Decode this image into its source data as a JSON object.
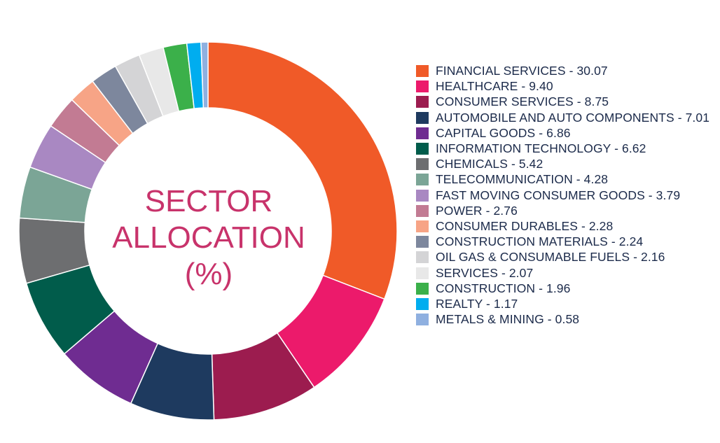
{
  "chart_data": {
    "type": "pie",
    "title_lines": [
      "SECTOR",
      "ALLOCATION",
      "(%)"
    ],
    "legend_placement": "right",
    "slices": [
      {
        "label": "FINANCIAL SERVICES - 30.07",
        "value": 30.07,
        "color": "#f05a28"
      },
      {
        "label": "HEALTHCARE - 9.40",
        "value": 9.4,
        "color": "#ec1a6b"
      },
      {
        "label": "CONSUMER SERVICES - 8.75",
        "value": 8.75,
        "color": "#9c1c4f"
      },
      {
        "label": "AUTOMOBILE AND AUTO COMPONENTS - 7.01",
        "value": 7.01,
        "color": "#1e3a5f"
      },
      {
        "label": "CAPITAL GOODS - 6.86",
        "value": 6.86,
        "color": "#6f2c91"
      },
      {
        "label": "INFORMATION TECHNOLOGY - 6.62",
        "value": 6.62,
        "color": "#015c4b"
      },
      {
        "label": "CHEMICALS - 5.42",
        "value": 5.42,
        "color": "#6d6e70"
      },
      {
        "label": "TELECOMMUNICATION - 4.28",
        "value": 4.28,
        "color": "#7ba596"
      },
      {
        "label": "FAST MOVING CONSUMER GOODS - 3.79",
        "value": 3.79,
        "color": "#a988c2"
      },
      {
        "label": "POWER - 2.76",
        "value": 2.76,
        "color": "#c27b93"
      },
      {
        "label": "CONSUMER DURABLES - 2.28",
        "value": 2.28,
        "color": "#f7a486"
      },
      {
        "label": "CONSTRUCTION MATERIALS - 2.24",
        "value": 2.24,
        "color": "#7d879d"
      },
      {
        "label": "OIL GAS & CONSUMABLE FUELS - 2.16",
        "value": 2.16,
        "color": "#d4d4d6"
      },
      {
        "label": "SERVICES - 2.07",
        "value": 2.07,
        "color": "#e8e8e8"
      },
      {
        "label": "CONSTRUCTION - 1.96",
        "value": 1.96,
        "color": "#3bb04a"
      },
      {
        "label": "REALTY - 1.17",
        "value": 1.17,
        "color": "#00adef"
      },
      {
        "label": "METALS & MINING - 0.58",
        "value": 0.58,
        "color": "#8fb0e0"
      }
    ]
  }
}
